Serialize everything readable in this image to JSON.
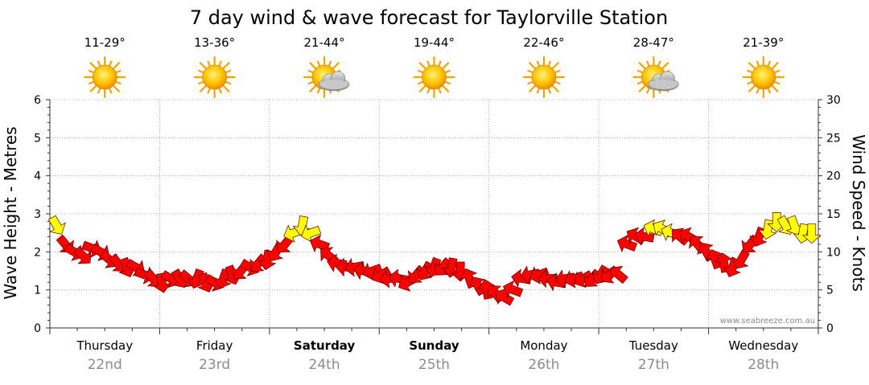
{
  "title": "7 day wind & wave forecast for Taylorville Station",
  "watermark": "www.seabreeze.com.au",
  "days": [
    {
      "name": "Thursday",
      "date": "22nd",
      "temp": "11-29°",
      "icon": "sun-icon",
      "bold": false
    },
    {
      "name": "Friday",
      "date": "23rd",
      "temp": "13-36°",
      "icon": "sun-icon",
      "bold": false
    },
    {
      "name": "Saturday",
      "date": "24th",
      "temp": "21-44°",
      "icon": "sun-cloud-icon",
      "bold": true
    },
    {
      "name": "Sunday",
      "date": "25th",
      "temp": "19-44°",
      "icon": "sun-icon",
      "bold": true
    },
    {
      "name": "Monday",
      "date": "26th",
      "temp": "22-46°",
      "icon": "sun-icon",
      "bold": false
    },
    {
      "name": "Tuesday",
      "date": "27th",
      "temp": "28-47°",
      "icon": "sun-cloud-icon",
      "bold": false
    },
    {
      "name": "Wednesday",
      "date": "28th",
      "temp": "21-39°",
      "icon": "sun-icon",
      "bold": false
    }
  ],
  "chart_data": {
    "type": "line",
    "title": "7 day wind & wave forecast for Taylorville Station",
    "ylabel_left": "Wave Height - Metres",
    "ylabel_right": "Wind Speed - Knots",
    "ylim_left": [
      0,
      6
    ],
    "ylim_right": [
      0,
      30
    ],
    "yticks_left": [
      0,
      1,
      2,
      3,
      4,
      5,
      6
    ],
    "yticks_right": [
      0,
      5,
      10,
      15,
      20,
      25,
      30
    ],
    "grid": true,
    "colors": {
      "strong_wind": "#ffff00",
      "wind": "#ff0000",
      "grid": "#999999",
      "axis": "#333333"
    },
    "x_unit": "day index (0 = Thursday 22nd 00:00)",
    "wind_series": {
      "name": "Wind Speed - Knots",
      "x": [
        0.06,
        0.14,
        0.22,
        0.3,
        0.38,
        0.46,
        0.54,
        0.62,
        0.7,
        0.78,
        0.86,
        0.94,
        1.02,
        1.1,
        1.18,
        1.26,
        1.34,
        1.42,
        1.5,
        1.58,
        1.66,
        1.74,
        1.82,
        1.9,
        1.98,
        2.06,
        2.14,
        2.22,
        2.3,
        2.38,
        2.46,
        2.54,
        2.62,
        2.7,
        2.78,
        2.86,
        2.94,
        3.02,
        3.1,
        3.18,
        3.26,
        3.34,
        3.42,
        3.5,
        3.58,
        3.66,
        3.74,
        3.82,
        3.9,
        3.98,
        4.06,
        4.14,
        4.22,
        4.3,
        4.38,
        4.46,
        4.54,
        4.62,
        4.7,
        4.78,
        4.86,
        4.94,
        5.02,
        5.1,
        5.18,
        5.26,
        5.34,
        5.42,
        5.5,
        5.58,
        5.66,
        5.74,
        5.82,
        5.9,
        5.98,
        6.06,
        6.14,
        6.22,
        6.3,
        6.38,
        6.46,
        6.54,
        6.62,
        6.7,
        6.78,
        6.86,
        6.94
      ],
      "values": [
        13.5,
        11,
        10,
        9.5,
        10.5,
        10,
        9,
        8.5,
        8,
        8,
        7,
        6.5,
        6,
        6.5,
        6.5,
        6.5,
        6.5,
        6,
        6,
        6.5,
        7,
        7.5,
        8,
        8.5,
        9,
        10,
        11,
        12.5,
        13.5,
        12.5,
        11,
        9.5,
        8.5,
        8,
        8,
        7.5,
        7.5,
        7,
        6.5,
        6.5,
        6,
        7,
        7.5,
        8,
        8,
        8,
        7.5,
        6.5,
        5.5,
        5,
        4.5,
        4,
        5,
        6.5,
        7,
        7,
        6.5,
        6,
        6.5,
        6.5,
        6.5,
        6.5,
        7,
        7,
        7,
        11,
        12,
        12,
        13,
        13,
        12.5,
        12,
        12,
        11,
        10,
        9,
        8.5,
        8,
        9,
        11,
        12,
        13,
        14,
        13.5,
        13.5,
        12.5,
        12.5
      ],
      "direction": [
        330,
        320,
        300,
        315,
        290,
        300,
        310,
        320,
        340,
        300,
        290,
        320,
        350,
        300,
        330,
        310,
        20,
        340,
        300,
        20,
        340,
        40,
        300,
        40,
        10,
        30,
        40,
        70,
        10,
        70,
        110,
        130,
        100,
        90,
        80,
        100,
        70,
        60,
        80,
        100,
        60,
        40,
        30,
        20,
        40,
        10,
        0,
        160,
        150,
        170,
        140,
        120,
        110,
        100,
        80,
        70,
        90,
        100,
        80,
        70,
        60,
        40,
        30,
        50,
        130,
        110,
        120,
        100,
        110,
        120,
        110,
        130,
        120,
        140,
        150,
        160,
        170,
        20,
        30,
        40,
        20,
        10,
        0,
        330,
        340,
        10,
        0
      ],
      "highlight_threshold_knots": 12.5
    }
  }
}
